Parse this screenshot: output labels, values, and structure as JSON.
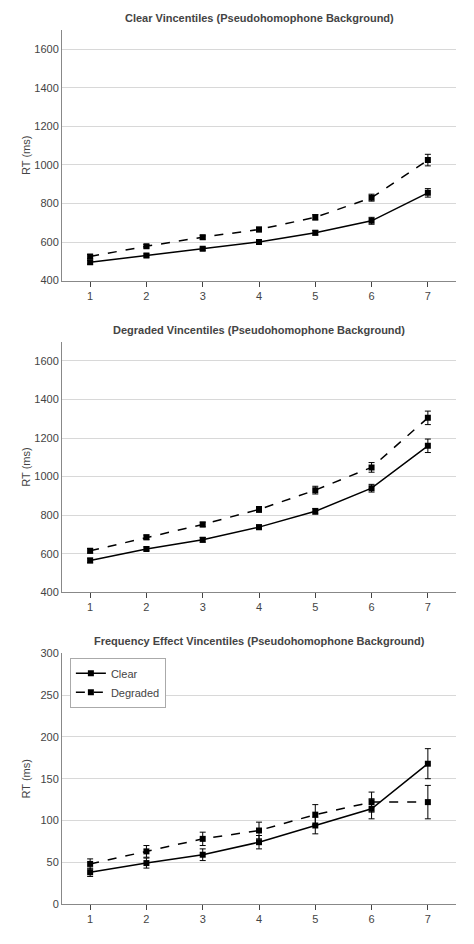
{
  "chart_data": [
    {
      "type": "line",
      "title": "Clear Vincentiles (Pseudohomophone Background)",
      "ylabel": "RT (ms)",
      "x": [
        1,
        2,
        3,
        4,
        5,
        6,
        7
      ],
      "series": [
        {
          "name": "Clear",
          "color": "#000000",
          "marker": "square",
          "line_style": "solid",
          "values": [
            495,
            530,
            565,
            600,
            648,
            710,
            855
          ],
          "error": [
            10,
            8,
            8,
            10,
            12,
            18,
            22
          ]
        },
        {
          "name": "Degraded",
          "color": "#000000",
          "marker": "square",
          "line_style": "dashed",
          "values": [
            525,
            578,
            625,
            665,
            728,
            830,
            1025
          ],
          "error": [
            10,
            9,
            10,
            12,
            14,
            18,
            30
          ]
        }
      ],
      "xlim": [
        0.5,
        7.5
      ],
      "xticks": [
        1,
        2,
        3,
        4,
        5,
        6,
        7
      ],
      "ylim": [
        400,
        1700
      ],
      "yticks": [
        400,
        600,
        800,
        1000,
        1200,
        1400,
        1600
      ],
      "grid": "y"
    },
    {
      "type": "line",
      "title": "Degraded Vincentiles (Pseudohomophone Background)",
      "ylabel": "RT (ms)",
      "x": [
        1,
        2,
        3,
        4,
        5,
        6,
        7
      ],
      "series": [
        {
          "name": "Clear",
          "color": "#000000",
          "marker": "square",
          "line_style": "solid",
          "values": [
            565,
            625,
            672,
            738,
            820,
            940,
            1160
          ],
          "error": [
            12,
            10,
            12,
            12,
            15,
            20,
            35
          ]
        },
        {
          "name": "Degraded",
          "color": "#000000",
          "marker": "square",
          "line_style": "dashed",
          "values": [
            615,
            685,
            752,
            830,
            930,
            1048,
            1305
          ],
          "error": [
            12,
            12,
            12,
            15,
            20,
            25,
            35
          ]
        }
      ],
      "xlim": [
        0.5,
        7.5
      ],
      "xticks": [
        1,
        2,
        3,
        4,
        5,
        6,
        7
      ],
      "ylim": [
        400,
        1700
      ],
      "yticks": [
        400,
        600,
        800,
        1000,
        1200,
        1400,
        1600
      ],
      "grid": "y"
    },
    {
      "type": "line",
      "title": "Frequency Effect Vincentiles (Pseudohomophone Background)",
      "ylabel": "RT (ms)",
      "x": [
        1,
        2,
        3,
        4,
        5,
        6,
        7
      ],
      "series": [
        {
          "name": "Clear",
          "color": "#000000",
          "marker": "square",
          "line_style": "solid",
          "values": [
            38,
            49,
            59,
            74,
            94,
            114,
            168
          ],
          "error": [
            5,
            6,
            7,
            8,
            10,
            12,
            18
          ]
        },
        {
          "name": "Degraded",
          "color": "#000000",
          "marker": "square",
          "line_style": "dashed",
          "values": [
            48,
            63,
            78,
            88,
            107,
            122,
            122
          ],
          "error": [
            6,
            7,
            8,
            10,
            12,
            12,
            20
          ]
        }
      ],
      "xlim": [
        0.5,
        7.5
      ],
      "xticks": [
        1,
        2,
        3,
        4,
        5,
        6,
        7
      ],
      "ylim": [
        0,
        300
      ],
      "yticks": [
        0,
        50,
        100,
        150,
        200,
        250,
        300
      ],
      "grid": "y",
      "legend": "upper left"
    }
  ]
}
